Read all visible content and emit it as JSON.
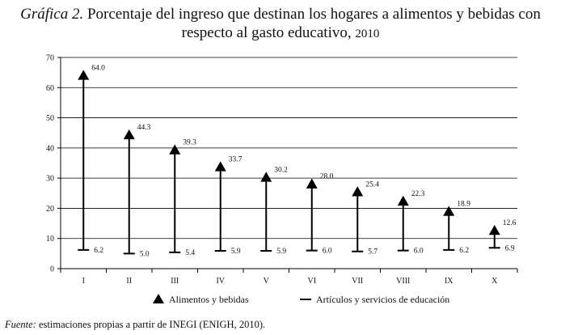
{
  "header": {
    "title_prefix": "Gráfica 2.",
    "title_line1": "Porcentaje del ingreso que destinan los hogares a alimentos y bebidas con",
    "title_line2": "respecto al gasto educativo,",
    "title_year": "2010"
  },
  "source": {
    "label": "Fuente:",
    "text": "estimaciones propias a partir de INEGI (ENIGH, 2010)."
  },
  "chart_data": {
    "type": "scatter",
    "categories": [
      "I",
      "II",
      "III",
      "IV",
      "V",
      "VI",
      "VII",
      "VIII",
      "IX",
      "X"
    ],
    "series": [
      {
        "name": "Alimentos y bebidas",
        "marker": "triangle",
        "values": [
          64.0,
          44.3,
          39.3,
          33.7,
          30.2,
          28.0,
          25.4,
          22.3,
          18.9,
          12.6
        ]
      },
      {
        "name": "Artículos y servicios de educación",
        "marker": "dash",
        "values": [
          6.2,
          5.0,
          5.4,
          5.9,
          5.9,
          6.0,
          5.7,
          6.0,
          6.2,
          6.9
        ]
      }
    ],
    "ylim": [
      0,
      70
    ],
    "yticks": [
      0,
      10,
      20,
      30,
      40,
      50,
      60,
      70
    ],
    "grid": true,
    "legend_position": "bottom",
    "colors": {
      "mark": "#000000",
      "grid": "#000000"
    }
  }
}
